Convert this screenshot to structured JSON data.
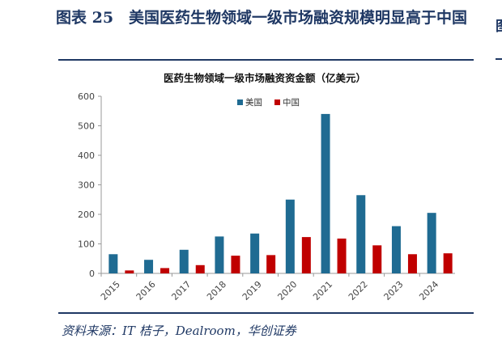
{
  "figure": {
    "title": "图表 25　美国医药生物领域一级市场融资规模明显高于中国",
    "source": "资料来源：IT 桔子，Dealroom，华创证券",
    "edge_fragment": "图"
  },
  "colors": {
    "us": "#1f6b92",
    "cn": "#c00000",
    "rule": "#1f3864"
  },
  "chart_data": {
    "type": "bar",
    "title": "医药生物领域一级市场融资资金额（亿美元）",
    "categories": [
      "2015",
      "2016",
      "2017",
      "2018",
      "2019",
      "2020",
      "2021",
      "2022",
      "2023",
      "2024"
    ],
    "series": [
      {
        "name": "美国",
        "values": [
          65,
          46,
          80,
          125,
          135,
          250,
          540,
          265,
          160,
          205
        ]
      },
      {
        "name": "中国",
        "values": [
          10,
          18,
          28,
          60,
          62,
          123,
          118,
          95,
          65,
          68
        ]
      }
    ],
    "ylim": [
      0,
      600
    ],
    "yticks": [
      0,
      100,
      200,
      300,
      400,
      500,
      600
    ],
    "legend": "top-right",
    "grid": false
  }
}
